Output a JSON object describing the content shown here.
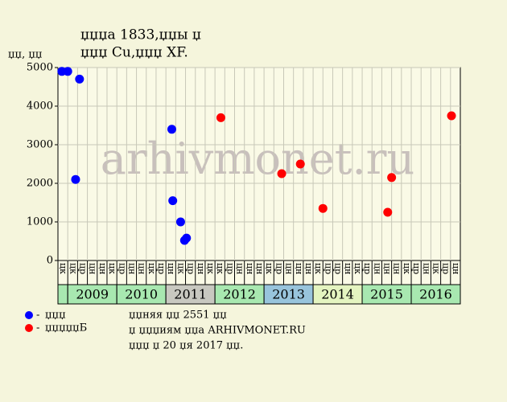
{
  "chart_data": {
    "type": "scatter",
    "title": "џџџа 1833,џџы џ",
    "subtitle": "џџџ Cu,џџџ XF.",
    "y_label": "џџ, џџ",
    "watermark": "arhivmonet.ru",
    "ylim": [
      0,
      5000
    ],
    "yticks": [
      0,
      1000,
      2000,
      3000,
      4000,
      5000
    ],
    "grid": true,
    "xlim": [
      0,
      41
    ],
    "columns": [
      "цк",
      "цк",
      "цр",
      "цн",
      "цн",
      "цк",
      "цр",
      "цн",
      "цн",
      "цк",
      "цр",
      "цн",
      "цк",
      "цр",
      "цн",
      "цк",
      "цк",
      "цр",
      "цн",
      "цн",
      "цн",
      "цк",
      "цр",
      "цн",
      "цн",
      "цн",
      "цк",
      "цр",
      "цр",
      "цн",
      "цк",
      "цр",
      "цн",
      "цн",
      "цн",
      "цк",
      "цр",
      "цн",
      "цк",
      "цр",
      "цн"
    ],
    "years": [
      "2009",
      "2010",
      "2011",
      "2012",
      "2013",
      "2014",
      "2015",
      "2016"
    ],
    "year_colors": [
      "#a8e8b0",
      "#a8e8b0",
      "#c8c8c0",
      "#a8e8b0",
      "#98c4dc",
      "#e4f4c0",
      "#a8e8b0",
      "#a8e8b0"
    ],
    "series": [
      {
        "name": "џџџ",
        "color": "#0000ff",
        "x": [
          0.4,
          1.0,
          2.2,
          1.8,
          11.6,
          11.7,
          12.5,
          12.9,
          13.1
        ],
        "values": [
          4900,
          4900,
          4700,
          2100,
          3400,
          1550,
          1000,
          520,
          580
        ]
      },
      {
        "name": "џџџџџБ",
        "color": "#ff0000",
        "x": [
          16.6,
          22.8,
          24.7,
          27.0,
          33.6,
          34.0,
          40.1
        ],
        "values": [
          3700,
          2250,
          2500,
          1350,
          1250,
          2150,
          3750
        ]
      }
    ],
    "notes": [
      "џџняя џџ 2551 џџ",
      "џ џџџиям џџа ARHIVMONET.RU",
      "џџџ џ 20 џя 2017 џџ."
    ]
  }
}
